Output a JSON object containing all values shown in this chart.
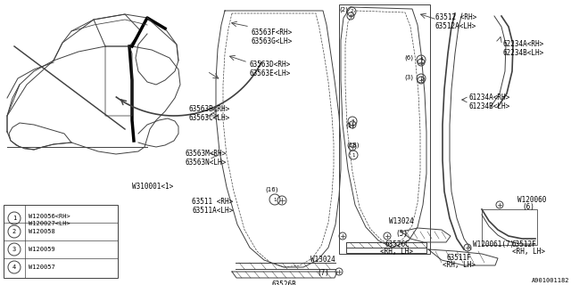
{
  "bg_color": "#ffffff",
  "line_color": "#404040",
  "diagram_number": "A901001182",
  "legend_items": [
    {
      "num": "1",
      "line1": "W120056<RH>",
      "line2": "W120027<LH>"
    },
    {
      "num": "2",
      "line1": "W120058",
      "line2": null
    },
    {
      "num": "3",
      "line1": "W120059",
      "line2": null
    },
    {
      "num": "4",
      "line1": "W120057",
      "line2": null
    }
  ]
}
